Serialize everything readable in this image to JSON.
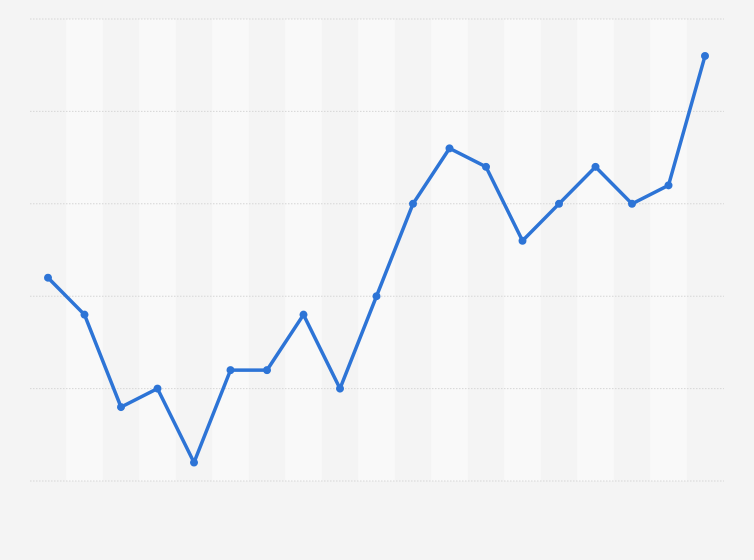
{
  "chart_data": {
    "type": "line",
    "title": "",
    "xlabel": "",
    "ylabel": "",
    "grid": true,
    "ylim": [
      0,
      25
    ],
    "x": [
      1,
      2,
      3,
      4,
      5,
      6,
      7,
      8,
      9,
      10,
      11,
      12,
      13,
      14,
      15,
      16,
      17,
      18,
      19
    ],
    "series": [
      {
        "values": [
          11,
          9,
          4,
          5,
          1,
          6,
          6,
          9,
          5,
          10,
          15,
          18,
          17,
          13,
          15,
          17,
          15,
          16,
          23
        ]
      }
    ]
  },
  "colors": {
    "background": "#f4f4f4",
    "band": "#f9f9f9",
    "gridline": "#d6d6d6",
    "line": "#2d74d6"
  }
}
